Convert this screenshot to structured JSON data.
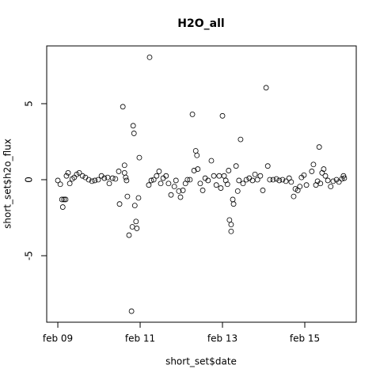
{
  "chart_data": {
    "type": "scatter",
    "title": "H2O_all",
    "xlabel": "short_set$date",
    "ylabel": "short_set$h2o_flux",
    "color": "#000000",
    "xlim": [
      8.73,
      16.25
    ],
    "ylim": [
      -9.375,
      8.8
    ],
    "xticks": [
      {
        "value": 9,
        "label": "feb 09"
      },
      {
        "value": 11,
        "label": "feb 11"
      },
      {
        "value": 13,
        "label": "feb 13"
      },
      {
        "value": 15,
        "label": "feb 15"
      }
    ],
    "yticks": [
      -5,
      0,
      5
    ],
    "x": [
      9.0,
      9.06,
      9.1,
      9.12,
      9.15,
      9.19,
      9.21,
      9.25,
      9.29,
      9.35,
      9.4,
      9.46,
      9.52,
      9.6,
      9.67,
      9.75,
      9.83,
      9.9,
      9.98,
      10.06,
      10.13,
      10.21,
      10.25,
      10.33,
      10.4,
      10.48,
      10.5,
      10.58,
      10.62,
      10.62,
      10.65,
      10.67,
      10.69,
      10.73,
      10.79,
      10.81,
      10.83,
      10.85,
      10.87,
      10.9,
      10.92,
      10.96,
      10.98,
      11.21,
      11.23,
      11.27,
      11.33,
      11.4,
      11.46,
      11.5,
      11.56,
      11.63,
      11.69,
      11.75,
      11.83,
      11.87,
      11.94,
      11.98,
      12.04,
      12.1,
      12.15,
      12.21,
      12.27,
      12.31,
      12.35,
      12.38,
      12.4,
      12.46,
      12.52,
      12.58,
      12.65,
      12.73,
      12.79,
      12.85,
      12.92,
      12.96,
      13.0,
      13.04,
      13.08,
      13.12,
      13.15,
      13.17,
      13.21,
      13.21,
      13.25,
      13.27,
      13.33,
      13.37,
      13.4,
      13.44,
      13.5,
      13.58,
      13.65,
      13.73,
      13.79,
      13.85,
      13.92,
      13.98,
      14.06,
      14.1,
      14.15,
      14.23,
      14.31,
      14.38,
      14.46,
      14.54,
      14.62,
      14.67,
      14.73,
      14.77,
      14.83,
      14.88,
      14.92,
      14.98,
      15.04,
      15.17,
      15.21,
      15.27,
      15.31,
      15.35,
      15.38,
      15.42,
      15.46,
      15.5,
      15.56,
      15.63,
      15.69,
      15.77,
      15.83,
      15.9,
      15.94,
      15.96
    ],
    "values": [
      -0.05,
      -0.3,
      -1.3,
      -1.8,
      -1.3,
      -1.3,
      0.25,
      0.45,
      -0.25,
      0.05,
      0.15,
      0.35,
      0.45,
      0.25,
      0.15,
      0,
      -0.1,
      -0.05,
      0,
      0.25,
      0.1,
      0.15,
      -0.25,
      0.1,
      0.05,
      0.55,
      -1.6,
      4.8,
      0.95,
      0.45,
      0.15,
      -0.05,
      -1.1,
      -3.65,
      -8.65,
      -3.1,
      3.55,
      3.05,
      -1.7,
      -2.75,
      -3.2,
      -1.2,
      1.45,
      -0.35,
      8.05,
      -0.05,
      0,
      0.25,
      0.55,
      -0.25,
      0.1,
      0.25,
      -0.25,
      -1.0,
      -0.45,
      -0.05,
      -0.75,
      -1.15,
      -0.7,
      -0.25,
      0,
      0,
      4.3,
      0.6,
      1.9,
      1.6,
      0.7,
      -0.25,
      -0.7,
      0.1,
      -0.05,
      1.25,
      0.25,
      -0.35,
      0.25,
      -0.55,
      4.2,
      0.25,
      -0.05,
      -0.3,
      0.6,
      -2.65,
      -2.95,
      -3.4,
      -1.3,
      -1.6,
      0.9,
      -0.75,
      -0.05,
      2.65,
      -0.25,
      0,
      0.1,
      -0.05,
      0.35,
      0,
      0.25,
      -0.7,
      6.05,
      0.9,
      0,
      0,
      0.05,
      -0.05,
      0,
      -0.1,
      0.1,
      -0.15,
      -1.1,
      -0.6,
      -0.7,
      -0.45,
      0.15,
      0.3,
      -0.35,
      0.55,
      1.0,
      -0.35,
      -0.1,
      2.15,
      -0.25,
      0.45,
      0.7,
      0.25,
      -0.05,
      -0.45,
      -0.1,
      0,
      -0.15,
      0.05,
      0.25,
      0.1
    ]
  }
}
